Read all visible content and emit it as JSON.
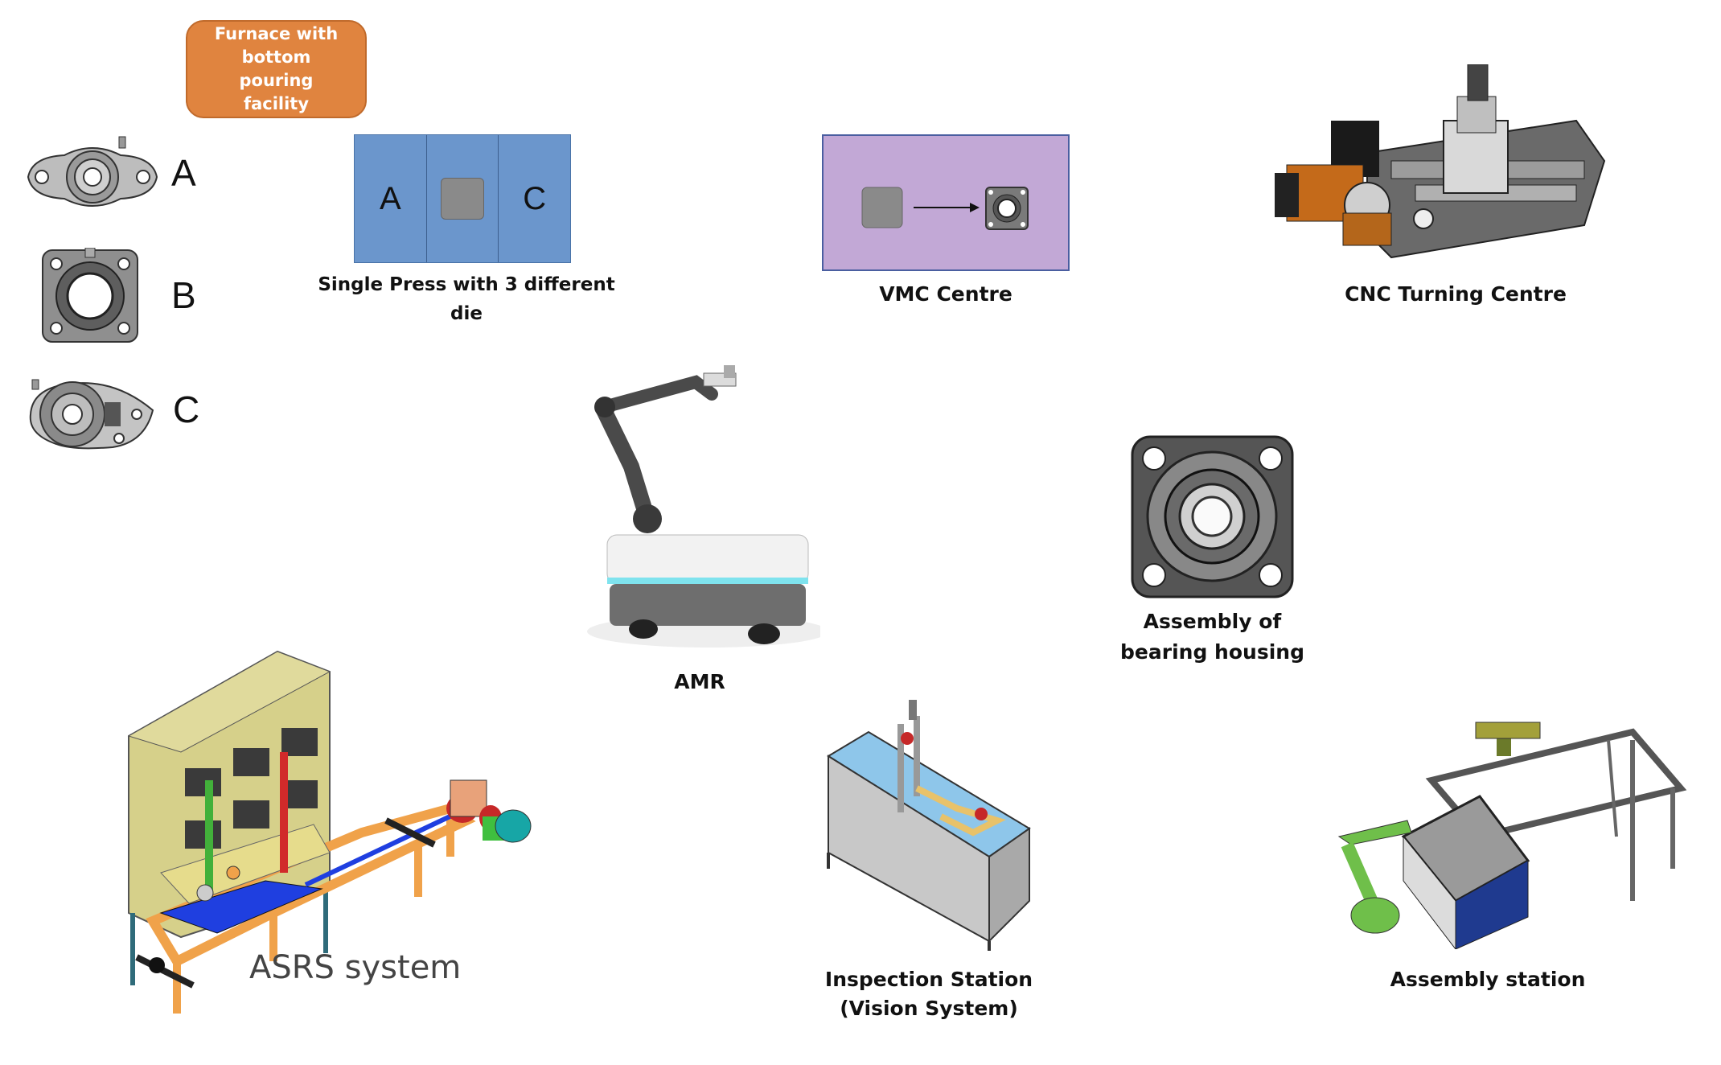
{
  "furnace": {
    "label": "Furnace with bottom pouring facility"
  },
  "parts": [
    {
      "letter": "A",
      "icon": "flange-bearing-2bolt-icon"
    },
    {
      "letter": "B",
      "icon": "square-flange-bearing-icon"
    },
    {
      "letter": "C",
      "icon": "flange-bearing-3bolt-icon"
    }
  ],
  "press": {
    "dies": [
      "A",
      "",
      "C"
    ],
    "label": "Single Press with 3 different die"
  },
  "stations": {
    "vmc": "VMC Centre",
    "cnc": "CNC Turning Centre",
    "amr": "AMR",
    "assembly_housing": "Assembly of bearing housing",
    "asrs": "ASRS system",
    "inspection": "Inspection Station (Vision System)",
    "assembly_station": "Assembly station"
  },
  "colors": {
    "furnace": "#e0843f",
    "press": "#6b96cc",
    "vmc": "#c2a8d6",
    "asrs_frame": "#f0a24a",
    "asrs_cabinet": "#d6d08a"
  }
}
